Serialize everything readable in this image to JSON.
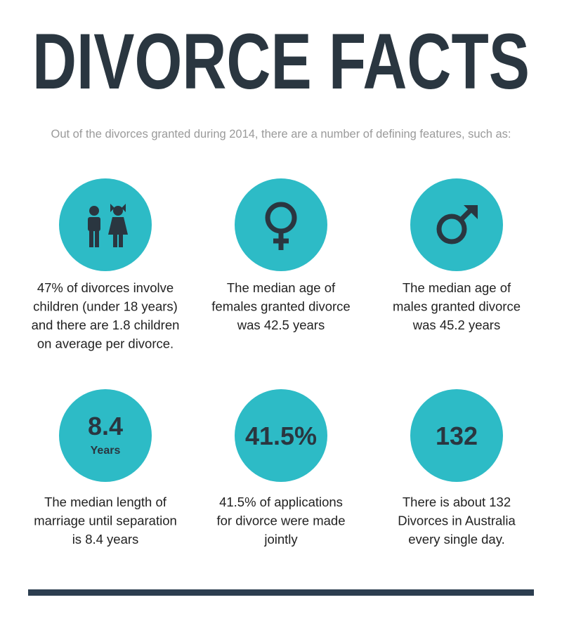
{
  "header": {
    "title": "DIVORCE FACTS",
    "subtitle": "Out of the divorces granted during 2014, there are a number of defining features, such as:"
  },
  "facts": [
    {
      "description": [
        "47% of divorces involve",
        "children (under 18 years)",
        "and there are 1.8 children",
        "on average per divorce."
      ]
    },
    {
      "description": [
        "The median age of",
        "females granted divorce",
        "was 42.5 years"
      ]
    },
    {
      "description": [
        "The median age of",
        "males granted divorce",
        "was 45.2 years"
      ]
    },
    {
      "circle_text": "8.4",
      "circle_subtext": "Years",
      "description": [
        "The median length of",
        "marriage until separation",
        "is 8.4 years"
      ]
    },
    {
      "circle_text": "41.5%",
      "description": [
        "41.5% of applications",
        "for divorce were made",
        "jointly"
      ]
    },
    {
      "circle_text": "132",
      "description": [
        "There is about 132",
        "Divorces in Australia",
        "every single day."
      ]
    }
  ]
}
